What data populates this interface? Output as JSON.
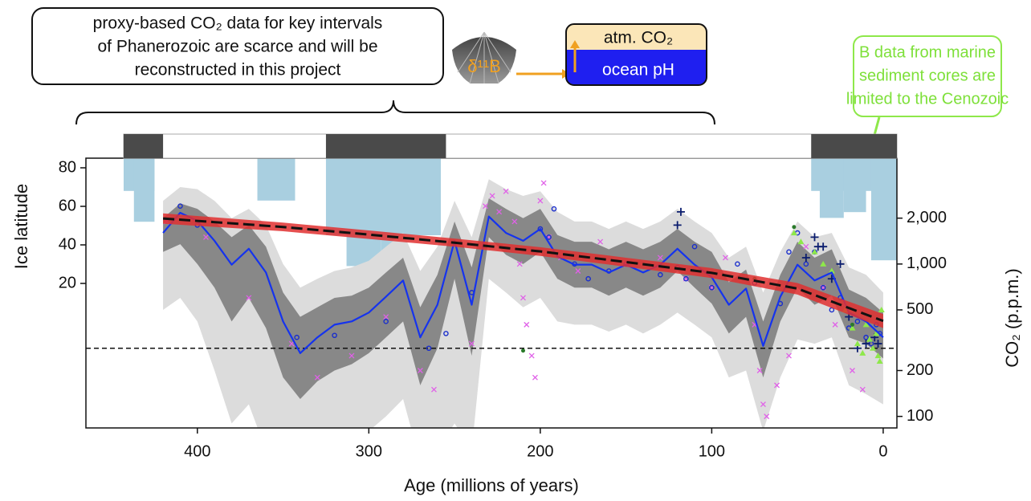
{
  "chart_data": {
    "type": "line",
    "x_label": "Age (millions of years)",
    "y_label": "Ice latitude",
    "y2_label": "CO₂ (p.p.m.)",
    "xlim": [
      465,
      -8
    ],
    "xticks": [
      400,
      300,
      200,
      100,
      0
    ],
    "ylim": [
      -55,
      85
    ],
    "yticks": [
      20,
      40,
      60,
      80
    ],
    "y2lim": [
      84,
      4950
    ],
    "y2_log": true,
    "y2ticks": [
      100,
      200,
      500,
      {
        "value": 1000,
        "label": "1,000"
      },
      {
        "value": 2000,
        "label": "2,000"
      }
    ],
    "glaciation_span": [
      443,
      -8
    ],
    "glaciations": [
      [
        443,
        420
      ],
      [
        325,
        255
      ],
      [
        42,
        -8
      ]
    ],
    "ice_latitude": {
      "color": "#a9cfe0",
      "bars": [
        {
          "start": 443,
          "end": 425,
          "value": 68
        },
        {
          "start": 437,
          "end": 425,
          "value": 52
        },
        {
          "start": 365,
          "end": 343,
          "value": 63
        },
        {
          "start": 325,
          "end": 258,
          "value": 45
        },
        {
          "start": 313,
          "end": 293,
          "value": 29
        },
        {
          "start": 293,
          "end": 280,
          "value": 34
        },
        {
          "start": 42,
          "end": -8,
          "value": 68
        },
        {
          "start": 37,
          "end": 23,
          "value": 54
        },
        {
          "start": 23,
          "end": 10,
          "value": 57
        },
        {
          "start": 7,
          "end": -8,
          "value": 32
        }
      ]
    },
    "x": [
      420,
      410,
      400,
      390,
      380,
      370,
      360,
      350,
      340,
      330,
      320,
      310,
      300,
      290,
      280,
      270,
      260,
      250,
      240,
      230,
      220,
      210,
      200,
      190,
      180,
      170,
      160,
      150,
      140,
      130,
      120,
      110,
      100,
      90,
      80,
      70,
      60,
      50,
      40,
      30,
      20,
      10,
      0
    ],
    "light_band": {
      "color": "#dcdcdc",
      "upper": [
        2600,
        3200,
        3100,
        2600,
        2000,
        2300,
        1800,
        1000,
        700,
        800,
        900,
        950,
        1050,
        1300,
        1600,
        900,
        1300,
        2600,
        1500,
        3600,
        3100,
        2800,
        3000,
        2200,
        1900,
        1900,
        1700,
        1900,
        1700,
        1900,
        2300,
        1900,
        1600,
        1100,
        1300,
        650,
        1200,
        1900,
        1500,
        1600,
        950,
        850,
        650
      ],
      "lower": [
        500,
        600,
        420,
        200,
        90,
        120,
        60,
        40,
        40,
        50,
        60,
        70,
        80,
        100,
        130,
        50,
        60,
        90,
        60,
        800,
        650,
        520,
        600,
        420,
        400,
        400,
        360,
        400,
        350,
        400,
        480,
        400,
        330,
        180,
        200,
        80,
        180,
        320,
        300,
        330,
        160,
        140,
        120
      ]
    },
    "dark_band": {
      "color": "#888888",
      "upper": [
        2000,
        2500,
        2300,
        1900,
        1500,
        1800,
        1300,
        650,
        450,
        520,
        600,
        620,
        700,
        880,
        1100,
        520,
        850,
        1900,
        950,
        2700,
        2300,
        2000,
        2300,
        1550,
        1400,
        1400,
        1250,
        1400,
        1250,
        1400,
        1700,
        1400,
        1200,
        760,
        920,
        420,
        850,
        1400,
        1100,
        1250,
        680,
        600,
        480
      ],
      "lower": [
        1200,
        1350,
        1000,
        700,
        420,
        600,
        380,
        180,
        130,
        170,
        200,
        220,
        260,
        330,
        420,
        160,
        280,
        800,
        250,
        1500,
        1150,
        1000,
        1200,
        800,
        700,
        700,
        620,
        700,
        620,
        700,
        900,
        700,
        550,
        350,
        450,
        180,
        420,
        700,
        540,
        620,
        330,
        300,
        240
      ]
    },
    "series": [
      {
        "color": "#1533ee",
        "axis": "y2",
        "values": [
          1600,
          2170,
          1920,
          1420,
          990,
          1260,
          880,
          420,
          260,
          330,
          400,
          420,
          480,
          610,
          780,
          330,
          540,
          1420,
          540,
          2050,
          1600,
          1420,
          1700,
          1120,
          990,
          990,
          880,
          990,
          880,
          990,
          1260,
          990,
          820,
          540,
          690,
          290,
          610,
          990,
          780,
          880,
          480,
          420,
          330
        ]
      }
    ],
    "trend": {
      "color": "#111111",
      "band_color": "#e03030",
      "x": [
        420,
        350,
        300,
        250,
        200,
        150,
        100,
        50,
        0
      ],
      "values": [
        1990,
        1750,
        1560,
        1380,
        1210,
        1030,
        875,
        690,
        423
      ],
      "upper": [
        2150,
        1870,
        1660,
        1470,
        1290,
        1100,
        940,
        750,
        470
      ],
      "lower": [
        1840,
        1640,
        1460,
        1300,
        1130,
        960,
        810,
        630,
        380
      ]
    },
    "reference": {
      "value": 280,
      "color": "#111111"
    },
    "scatter": [
      {
        "marker": "x",
        "color": "#e060e8",
        "x": [
          418,
          395,
          370,
          345,
          330,
          310,
          290,
          270,
          262,
          240,
          232,
          228,
          224,
          220,
          215,
          212,
          210,
          208,
          205,
          203,
          200,
          198,
          195,
          188,
          178,
          165,
          150,
          130,
          115,
          100,
          92,
          75,
          72,
          70,
          68,
          62,
          55,
          45,
          35,
          28,
          18,
          12
        ],
        "values": [
          1900,
          1500,
          600,
          300,
          180,
          250,
          450,
          200,
          150,
          300,
          2400,
          2800,
          2200,
          3000,
          1900,
          1000,
          600,
          400,
          250,
          180,
          2600,
          3400,
          1500,
          1100,
          900,
          1400,
          1000,
          1100,
          800,
          700,
          1100,
          400,
          200,
          120,
          100,
          160,
          250,
          1300,
          700,
          400,
          200,
          150
        ]
      },
      {
        "marker": "o",
        "color": "#1a2ecc",
        "x": [
          410,
          400,
          342,
          320,
          290,
          265,
          255,
          240,
          200,
          195,
          192,
          180,
          172,
          160,
          150,
          130,
          120,
          115,
          110,
          100,
          85,
          75,
          60,
          55,
          50,
          45,
          40,
          35,
          30,
          25,
          20,
          15,
          10,
          7,
          4,
          2
        ],
        "values": [
          2400,
          1800,
          330,
          340,
          420,
          280,
          350,
          650,
          1700,
          1500,
          2300,
          1000,
          800,
          900,
          1000,
          850,
          950,
          800,
          1300,
          700,
          1000,
          750,
          550,
          1200,
          1600,
          1000,
          1200,
          700,
          500,
          600,
          380,
          420,
          330,
          300,
          400,
          350
        ]
      },
      {
        "marker": "+",
        "color": "#0b1d6e",
        "x": [
          120,
          118,
          45,
          40,
          38,
          35,
          30,
          25,
          20,
          15,
          10,
          5,
          3
        ],
        "values": [
          1800,
          2200,
          1100,
          1500,
          1300,
          1300,
          800,
          1000,
          450,
          280,
          300,
          330,
          300
        ]
      },
      {
        "marker": "^",
        "color": "#8ee84a",
        "x": [
          52,
          48,
          40,
          35,
          30,
          22,
          18,
          15,
          12,
          10,
          8,
          6,
          4,
          3,
          2,
          1
        ],
        "values": [
          1600,
          1400,
          1200,
          1000,
          900,
          500,
          380,
          300,
          260,
          400,
          320,
          280,
          350,
          250,
          230,
          500
        ]
      },
      {
        "marker": "dot",
        "color": "#2a7a2a",
        "x": [
          210,
          75,
          52,
          18
        ],
        "values": [
          270,
          800,
          1750,
          400
        ]
      }
    ],
    "annotations": {
      "callout": [
        "proxy-based CO₂ data for key intervals",
        "of Phanerozoic are scarce and will be",
        "reconstructed in this project"
      ],
      "proxy_label": "δ¹¹B",
      "box_top": "atm. CO₂",
      "box_bottom": "ocean pH",
      "note": [
        "B data from marine",
        "sediment cores are",
        "limited to the Cenozoic"
      ]
    }
  }
}
